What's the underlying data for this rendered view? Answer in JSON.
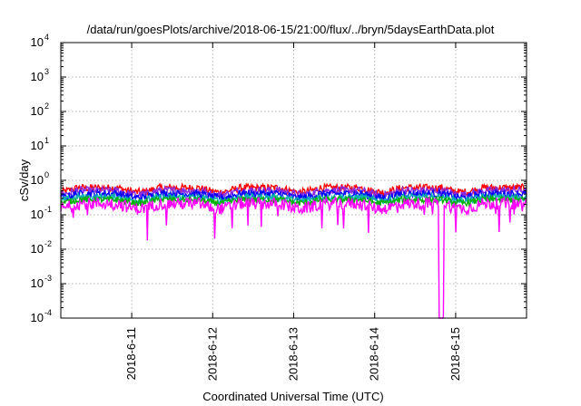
{
  "chart_data": {
    "type": "line",
    "title": "/data/run/goesPlots/archive/2018-06-15/21:00/flux/../bryn/5daysEarthData.plot",
    "xlabel": "Coordinated Universal Time (UTC)",
    "ylabel": "cSv/day",
    "yscale": "log",
    "ylim": [
      0.0001,
      10000
    ],
    "xlim": [
      "2018-06-10 03:00",
      "2018-06-15 21:00"
    ],
    "grid": true,
    "legend": "none",
    "y_ticks": [
      {
        "value": 0.0001,
        "base": "10",
        "exp": "-4"
      },
      {
        "value": 0.001,
        "base": "10",
        "exp": "-3"
      },
      {
        "value": 0.01,
        "base": "10",
        "exp": "-2"
      },
      {
        "value": 0.1,
        "base": "10",
        "exp": "-1"
      },
      {
        "value": 1,
        "base": "10",
        "exp": "0"
      },
      {
        "value": 10,
        "base": "10",
        "exp": "1"
      },
      {
        "value": 100,
        "base": "10",
        "exp": "2"
      },
      {
        "value": 1000,
        "base": "10",
        "exp": "3"
      },
      {
        "value": 10000,
        "base": "10",
        "exp": "4"
      }
    ],
    "x_ticks": [
      "2018-6-11",
      "2018-6-12",
      "2018-6-13",
      "2018-6-14",
      "2018-6-15"
    ],
    "series": [
      {
        "color": "#ff0000",
        "level": 0.62,
        "trough": 0.45,
        "noise": 0.22
      },
      {
        "color": "#8a2be2",
        "level": 0.52,
        "trough": 0.38,
        "noise": 0.22
      },
      {
        "color": "#0000ff",
        "level": 0.42,
        "trough": 0.31,
        "noise": 0.22
      },
      {
        "color": "#00b0b0",
        "level": 0.33,
        "trough": 0.26,
        "noise": 0.2
      },
      {
        "color": "#00b000",
        "level": 0.28,
        "trough": 0.22,
        "noise": 0.18
      },
      {
        "color": "#ff00ff",
        "level": 0.22,
        "trough": 0.15,
        "noise": 0.35,
        "dropout": [
          "2018-06-14 19:00",
          "2018-06-14 20:30"
        ]
      }
    ]
  }
}
